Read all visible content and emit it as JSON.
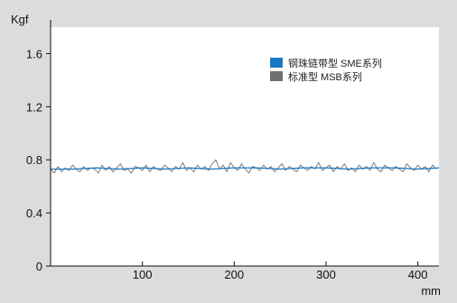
{
  "chart_data": {
    "type": "line",
    "title": "",
    "ylabel": "Kgf",
    "xlabel": "mm",
    "xlim": [
      0,
      423
    ],
    "ylim": [
      0,
      1.8
    ],
    "xticks": [
      100,
      200,
      300,
      400
    ],
    "xtick_labels": [
      "100",
      "200",
      "300",
      "400"
    ],
    "yticks": [
      0,
      0.4,
      0.8,
      1.2,
      1.6
    ],
    "ytick_labels": [
      "0",
      "0.4",
      "0.8",
      "1.2",
      "1.6"
    ],
    "grid": false,
    "legend_position": "top-right",
    "series": [
      {
        "name": "钢珠链带型 SME系列",
        "color": "#1a78c2",
        "x": [
          0,
          25,
          50,
          75,
          100,
          125,
          150,
          175,
          200,
          225,
          250,
          275,
          300,
          325,
          350,
          375,
          400,
          423
        ],
        "y": [
          0.73,
          0.73,
          0.74,
          0.73,
          0.74,
          0.73,
          0.74,
          0.73,
          0.74,
          0.74,
          0.73,
          0.74,
          0.74,
          0.73,
          0.74,
          0.74,
          0.73,
          0.74
        ]
      },
      {
        "name": "标准型 MSB系列",
        "color": "#707070",
        "x": [
          0,
          4,
          8,
          12,
          16,
          20,
          24,
          28,
          32,
          36,
          40,
          44,
          48,
          52,
          56,
          60,
          64,
          68,
          72,
          76,
          80,
          84,
          88,
          92,
          96,
          100,
          104,
          108,
          112,
          116,
          120,
          124,
          128,
          132,
          136,
          140,
          144,
          148,
          152,
          156,
          160,
          164,
          168,
          172,
          176,
          180,
          184,
          188,
          192,
          196,
          200,
          204,
          208,
          212,
          216,
          220,
          224,
          228,
          232,
          236,
          240,
          244,
          248,
          252,
          256,
          260,
          264,
          268,
          272,
          276,
          280,
          284,
          288,
          292,
          296,
          300,
          304,
          308,
          312,
          316,
          320,
          324,
          328,
          332,
          336,
          340,
          344,
          348,
          352,
          356,
          360,
          364,
          368,
          372,
          376,
          380,
          384,
          388,
          392,
          396,
          400,
          404,
          408,
          412,
          416,
          420
        ],
        "y": [
          0.73,
          0.7,
          0.75,
          0.71,
          0.74,
          0.72,
          0.76,
          0.73,
          0.71,
          0.75,
          0.72,
          0.74,
          0.73,
          0.7,
          0.76,
          0.72,
          0.75,
          0.71,
          0.74,
          0.77,
          0.72,
          0.73,
          0.7,
          0.75,
          0.74,
          0.72,
          0.76,
          0.71,
          0.75,
          0.73,
          0.72,
          0.76,
          0.74,
          0.71,
          0.75,
          0.73,
          0.78,
          0.72,
          0.74,
          0.71,
          0.76,
          0.73,
          0.75,
          0.72,
          0.77,
          0.8,
          0.73,
          0.76,
          0.71,
          0.78,
          0.74,
          0.72,
          0.77,
          0.73,
          0.7,
          0.75,
          0.74,
          0.72,
          0.76,
          0.73,
          0.75,
          0.71,
          0.74,
          0.77,
          0.72,
          0.75,
          0.73,
          0.71,
          0.76,
          0.74,
          0.72,
          0.75,
          0.73,
          0.78,
          0.72,
          0.74,
          0.76,
          0.71,
          0.75,
          0.73,
          0.77,
          0.72,
          0.74,
          0.71,
          0.76,
          0.73,
          0.75,
          0.72,
          0.78,
          0.73,
          0.71,
          0.76,
          0.74,
          0.72,
          0.75,
          0.73,
          0.71,
          0.77,
          0.74,
          0.72,
          0.76,
          0.73,
          0.75,
          0.71,
          0.76,
          0.73
        ]
      }
    ]
  }
}
